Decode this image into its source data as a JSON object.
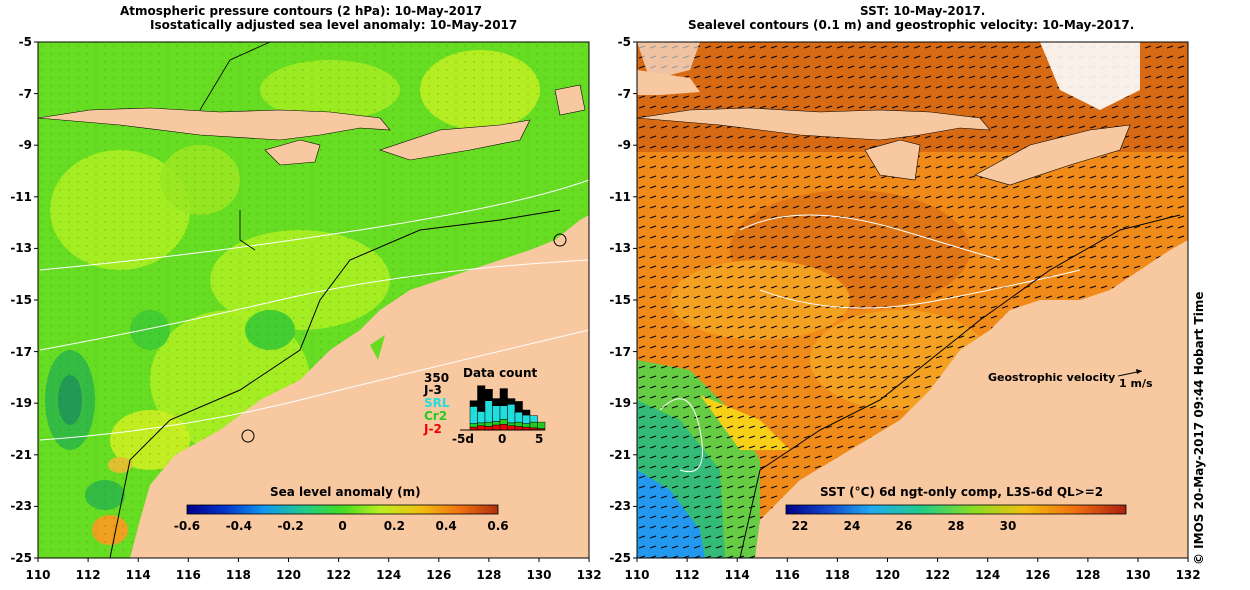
{
  "left_panel": {
    "title_line1": "Atmospheric pressure contours (2 hPa): 10-May-2017",
    "title_line2": "Isostatically adjusted sea level anomaly: 10-May-2017",
    "colorbar": {
      "title": "Sea level anomaly (m)",
      "ticks": [
        "-0.6",
        "-0.4",
        "-0.2",
        "0",
        "0.2",
        "0.4",
        "0.6"
      ]
    },
    "data_count": {
      "title": "Data count",
      "max_label": "350",
      "satellites": [
        {
          "name": "J-3",
          "color": "#000000"
        },
        {
          "name": "SRL",
          "color": "#22dddd"
        },
        {
          "name": "Cr2",
          "color": "#22cc22"
        },
        {
          "name": "J-2",
          "color": "#ee0000"
        }
      ],
      "x_ticks": [
        "-5d",
        "0",
        "5"
      ],
      "bars": [
        {
          "J2": 20,
          "Cr2": 25,
          "SRL": 120,
          "J3": 40
        },
        {
          "J2": 30,
          "Cr2": 20,
          "SRL": 80,
          "J3": 180
        },
        {
          "J2": 25,
          "Cr2": 30,
          "SRL": 150,
          "J3": 80
        },
        {
          "J2": 35,
          "Cr2": 25,
          "SRL": 110,
          "J3": 50
        },
        {
          "J2": 40,
          "Cr2": 35,
          "SRL": 95,
          "J3": 120
        },
        {
          "J2": 30,
          "Cr2": 20,
          "SRL": 130,
          "J3": 40
        },
        {
          "J2": 25,
          "Cr2": 30,
          "SRL": 70,
          "J3": 75
        },
        {
          "J2": 20,
          "Cr2": 25,
          "SRL": 60,
          "J3": 35
        },
        {
          "J2": 15,
          "Cr2": 40,
          "SRL": 45,
          "J3": 0
        },
        {
          "J2": 10,
          "Cr2": 45,
          "SRL": 0,
          "J3": 0
        }
      ]
    }
  },
  "right_panel": {
    "title_line1": "SST: 10-May-2017.",
    "title_line2": "Sealevel contours (0.1 m) and geostrophic velocity: 10-May-2017.",
    "colorbar": {
      "title": "SST (°C) 6d ngt-only comp, L3S-6d QL>=2",
      "ticks": [
        "22",
        "24",
        "26",
        "28",
        "30"
      ]
    },
    "legend": {
      "label": "Geostrophic velocity",
      "scale": "1 m/s"
    }
  },
  "axes": {
    "lon_ticks": [
      "110",
      "112",
      "114",
      "116",
      "118",
      "120",
      "122",
      "124",
      "126",
      "128",
      "130",
      "132"
    ],
    "lat_ticks": [
      "-5",
      "-7",
      "-9",
      "-11",
      "-13",
      "-15",
      "-17",
      "-19",
      "-21",
      "-23",
      "-25"
    ]
  },
  "credit": "© IMOS 20-May-2017 09:44 Hobart Time",
  "colors": {
    "land": "#f8c8a0",
    "sla_green": "#66dd22",
    "sla_yellowgreen": "#aaee22",
    "sst_orange": "#f08a18",
    "sst_green": "#44cc66",
    "sst_blue": "#3399ee"
  }
}
